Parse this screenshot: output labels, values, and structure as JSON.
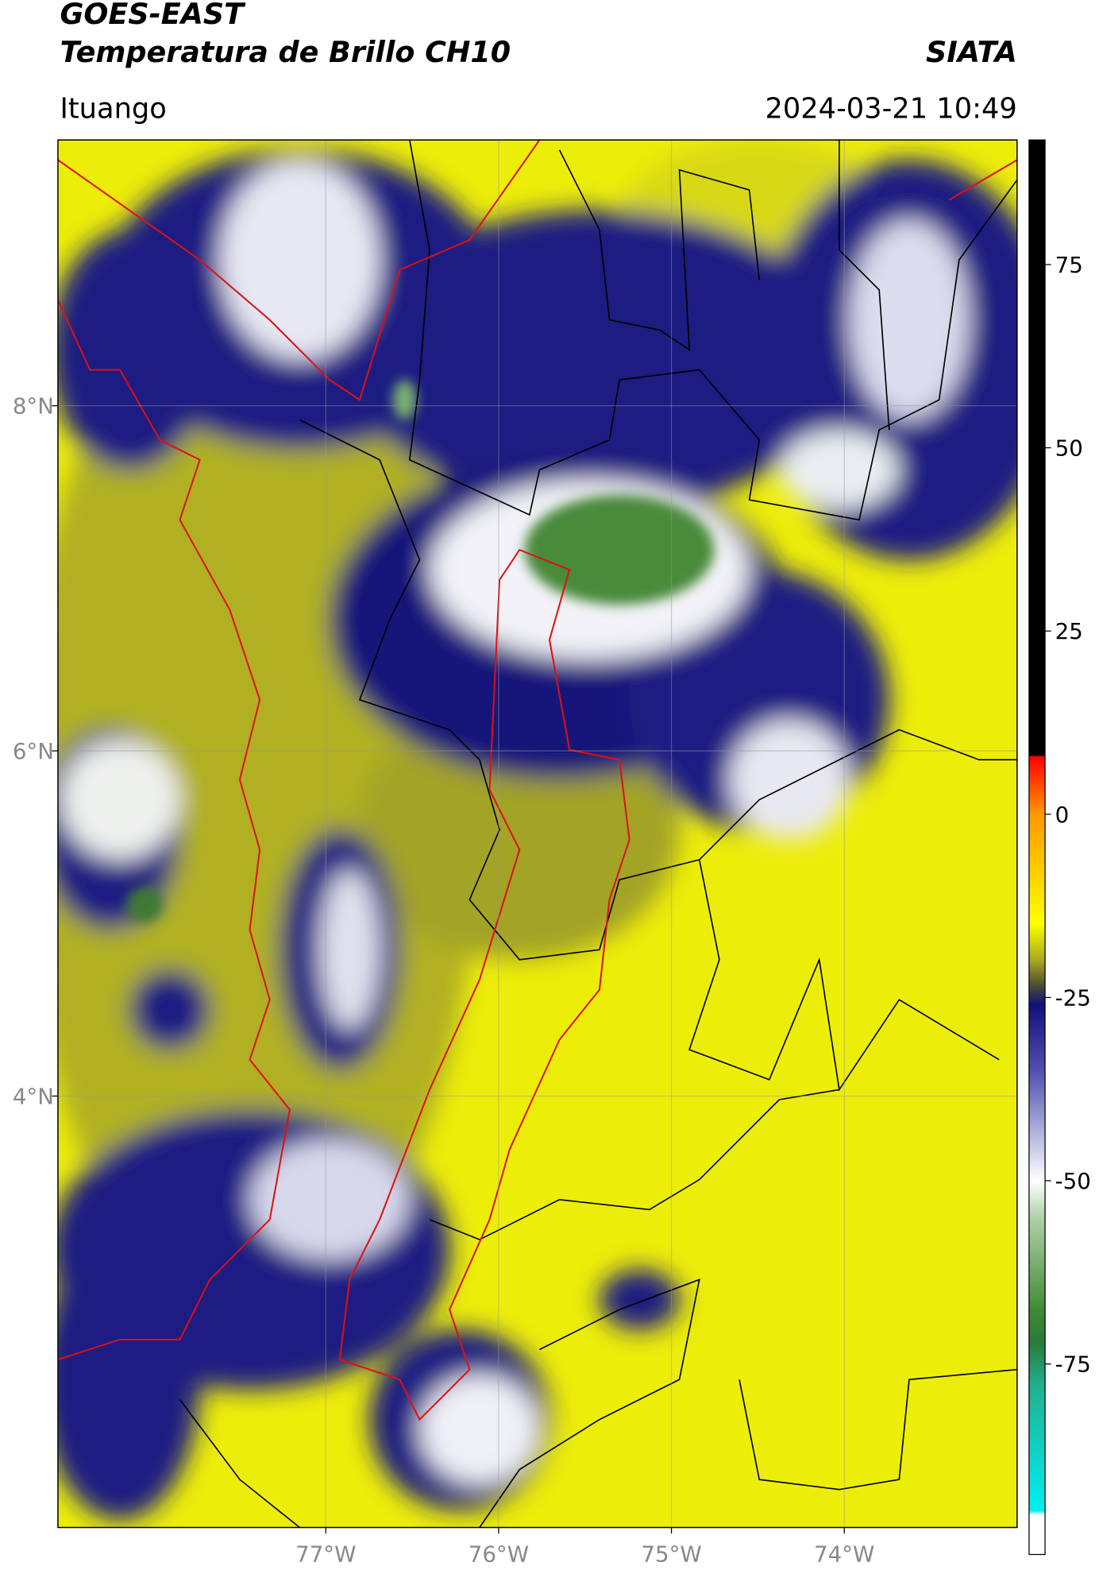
{
  "header": {
    "title": "GOES-EAST",
    "subtitle": "Temperatura de Brillo CH10",
    "source": "SIATA",
    "location": "Ituango",
    "datetime": "2024-03-21 10:49"
  },
  "map": {
    "lonlim": [
      -78.55,
      -73.0
    ],
    "latlim": [
      1.5,
      9.54
    ],
    "grid": true,
    "lon_ticks": [
      {
        "value": -77,
        "label": "77°W"
      },
      {
        "value": -76,
        "label": "76°W"
      },
      {
        "value": -75,
        "label": "75°W"
      },
      {
        "value": -74,
        "label": "74°W"
      }
    ],
    "lat_ticks": [
      {
        "value": 8,
        "label": "8°N"
      },
      {
        "value": 6,
        "label": "6°N"
      },
      {
        "value": 4,
        "label": "4°N"
      }
    ]
  },
  "colorbar": {
    "lim": [
      -101,
      92
    ],
    "ticks": [
      75,
      50,
      25,
      0,
      -25,
      -50,
      -75
    ]
  }
}
